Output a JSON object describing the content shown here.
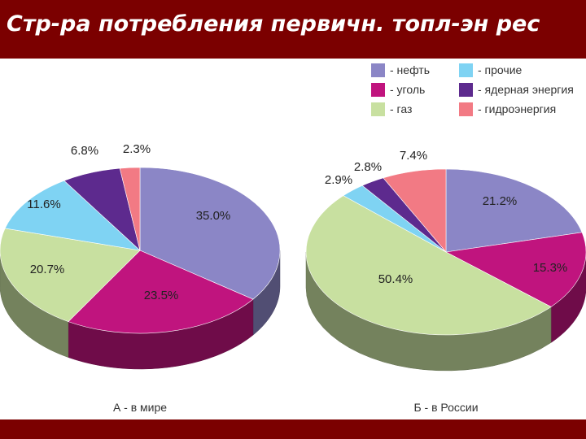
{
  "title": "Стр-ра потребления первичн. топл-эн рес",
  "legend": [
    {
      "label": "- нефть",
      "color": "#8b86c6",
      "icon": "purple-square"
    },
    {
      "label": "- прочие",
      "color": "#7fd3f3",
      "icon": "sky-blue-square"
    },
    {
      "label": "- уголь",
      "color": "#c0147e",
      "icon": "magenta-square"
    },
    {
      "label": "- ядерная энергия",
      "color": "#5d2a8e",
      "icon": "violet-square"
    },
    {
      "label": "- газ",
      "color": "#c8e0a0",
      "icon": "light-green-square"
    },
    {
      "label": "- гидроэнергия",
      "color": "#f27a84",
      "icon": "pink-square"
    }
  ],
  "chart_data": [
    {
      "type": "pie",
      "title": "А - в мире",
      "slices": [
        {
          "name": "нефть",
          "value": 35.0,
          "label": "35.0%",
          "color": "#8b86c6"
        },
        {
          "name": "уголь",
          "value": 23.5,
          "label": "23.5%",
          "color": "#c0147e"
        },
        {
          "name": "газ",
          "value": 20.7,
          "label": "20.7%",
          "color": "#c8e0a0"
        },
        {
          "name": "прочие",
          "value": 11.6,
          "label": "11.6%",
          "color": "#7fd3f3"
        },
        {
          "name": "ядерная энергия",
          "value": 6.8,
          "label": "6.8%",
          "color": "#5d2a8e"
        },
        {
          "name": "гидроэнергия",
          "value": 2.3,
          "label": "2.3%",
          "color": "#f27a84"
        }
      ]
    },
    {
      "type": "pie",
      "title": "Б - в России",
      "slices": [
        {
          "name": "нефть",
          "value": 21.2,
          "label": "21.2%",
          "color": "#8b86c6"
        },
        {
          "name": "уголь",
          "value": 15.3,
          "label": "15.3%",
          "color": "#c0147e"
        },
        {
          "name": "газ",
          "value": 50.4,
          "label": "50.4%",
          "color": "#c8e0a0"
        },
        {
          "name": "прочие",
          "value": 2.9,
          "label": "2.9%",
          "color": "#7fd3f3"
        },
        {
          "name": "ядерная энергия",
          "value": 2.8,
          "label": "2.8%",
          "color": "#5d2a8e"
        },
        {
          "name": "гидроэнергия",
          "value": 7.4,
          "label": "7.4%",
          "color": "#f27a84"
        }
      ]
    }
  ]
}
